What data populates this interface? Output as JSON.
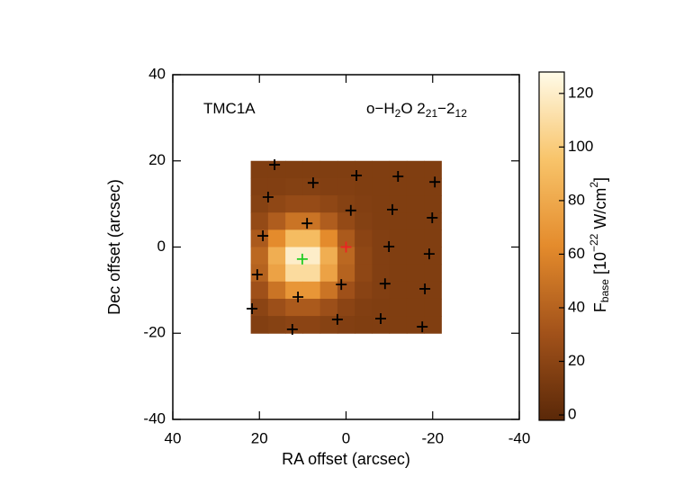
{
  "chart_data": {
    "type": "heatmap",
    "xlabel": "RA offset (arcsec)",
    "ylabel": "Dec offset (arcsec)",
    "annotations": [
      {
        "parts": [
          {
            "text": "TMC1A"
          }
        ]
      },
      {
        "parts": [
          {
            "text": "o−H"
          },
          {
            "text": "2",
            "sub": true
          },
          {
            "text": "O 2"
          },
          {
            "text": "21",
            "sub": true
          },
          {
            "text": "−2"
          },
          {
            "text": "12",
            "sub": true
          }
        ]
      }
    ],
    "xlim": [
      40,
      -40
    ],
    "ylim": [
      -40,
      40
    ],
    "xticks": [
      40,
      20,
      0,
      -20,
      -40
    ],
    "yticks": [
      -40,
      -20,
      0,
      20,
      40
    ],
    "x": [
      20,
      16,
      12,
      8,
      4,
      0,
      -4,
      -8,
      -12,
      -16,
      -20
    ],
    "y": [
      18,
      14,
      10,
      6,
      2,
      -2,
      -6,
      -10,
      -14,
      -18
    ],
    "z": [
      [
        15,
        15,
        15,
        15,
        15,
        15,
        15,
        15,
        15,
        15,
        15
      ],
      [
        16,
        16,
        17,
        17,
        16,
        16,
        15,
        15,
        15,
        15,
        15
      ],
      [
        18,
        22,
        25,
        25,
        22,
        18,
        16,
        15,
        15,
        15,
        15
      ],
      [
        24,
        37,
        50,
        50,
        37,
        24,
        17,
        15,
        15,
        15,
        15
      ],
      [
        35,
        63,
        91,
        91,
        63,
        35,
        20,
        16,
        15,
        15,
        15
      ],
      [
        43,
        83,
        120,
        120,
        83,
        43,
        22,
        16,
        15,
        15,
        15
      ],
      [
        40,
        76,
        109,
        109,
        76,
        40,
        22,
        16,
        15,
        15,
        15
      ],
      [
        29,
        50,
        69,
        69,
        50,
        29,
        19,
        16,
        15,
        15,
        15
      ],
      [
        20,
        28,
        35,
        35,
        28,
        20,
        16,
        15,
        15,
        15,
        15
      ],
      [
        16,
        18,
        20,
        20,
        18,
        16,
        15,
        15,
        15,
        15,
        15
      ]
    ],
    "colorbar": {
      "label_parts": [
        {
          "text": "F"
        },
        {
          "text": "base",
          "sub": true
        },
        {
          "text": " [10"
        },
        {
          "text": "−22",
          "sup": true
        },
        {
          "text": " W/cm"
        },
        {
          "text": "2",
          "sup": true
        },
        {
          "text": "]"
        }
      ],
      "lim": [
        -2,
        128
      ],
      "ticks": [
        0,
        20,
        40,
        60,
        80,
        100,
        120
      ],
      "colormap": [
        "#5a2808",
        "#a2521a",
        "#e48b2c",
        "#f8c46a",
        "#fffbe8"
      ]
    },
    "markers": [
      {
        "color": "#000000",
        "x": [
          16.5,
          7.6,
          -2.4,
          -12.0,
          -20.5,
          18.0,
          9.0,
          -1.1,
          -10.7,
          -19.9,
          19.2,
          -9.9,
          -19.2,
          20.5,
          1.1,
          -9.0,
          -18.2,
          11.1,
          21.7,
          2.0,
          -8.0,
          -17.6,
          12.4
        ],
        "y": [
          19.1,
          14.9,
          16.6,
          16.4,
          15.1,
          11.6,
          5.5,
          8.5,
          8.7,
          6.8,
          2.6,
          0.1,
          -1.6,
          -6.4,
          -8.7,
          -8.5,
          -9.7,
          -11.6,
          -14.3,
          -16.8,
          -16.6,
          -18.5,
          -19.1
        ]
      },
      {
        "color": "#22cc22",
        "x": [
          10.1
        ],
        "y": [
          -2.8
        ]
      },
      {
        "color": "#ee2222",
        "x": [
          0
        ],
        "y": [
          0
        ]
      }
    ]
  }
}
